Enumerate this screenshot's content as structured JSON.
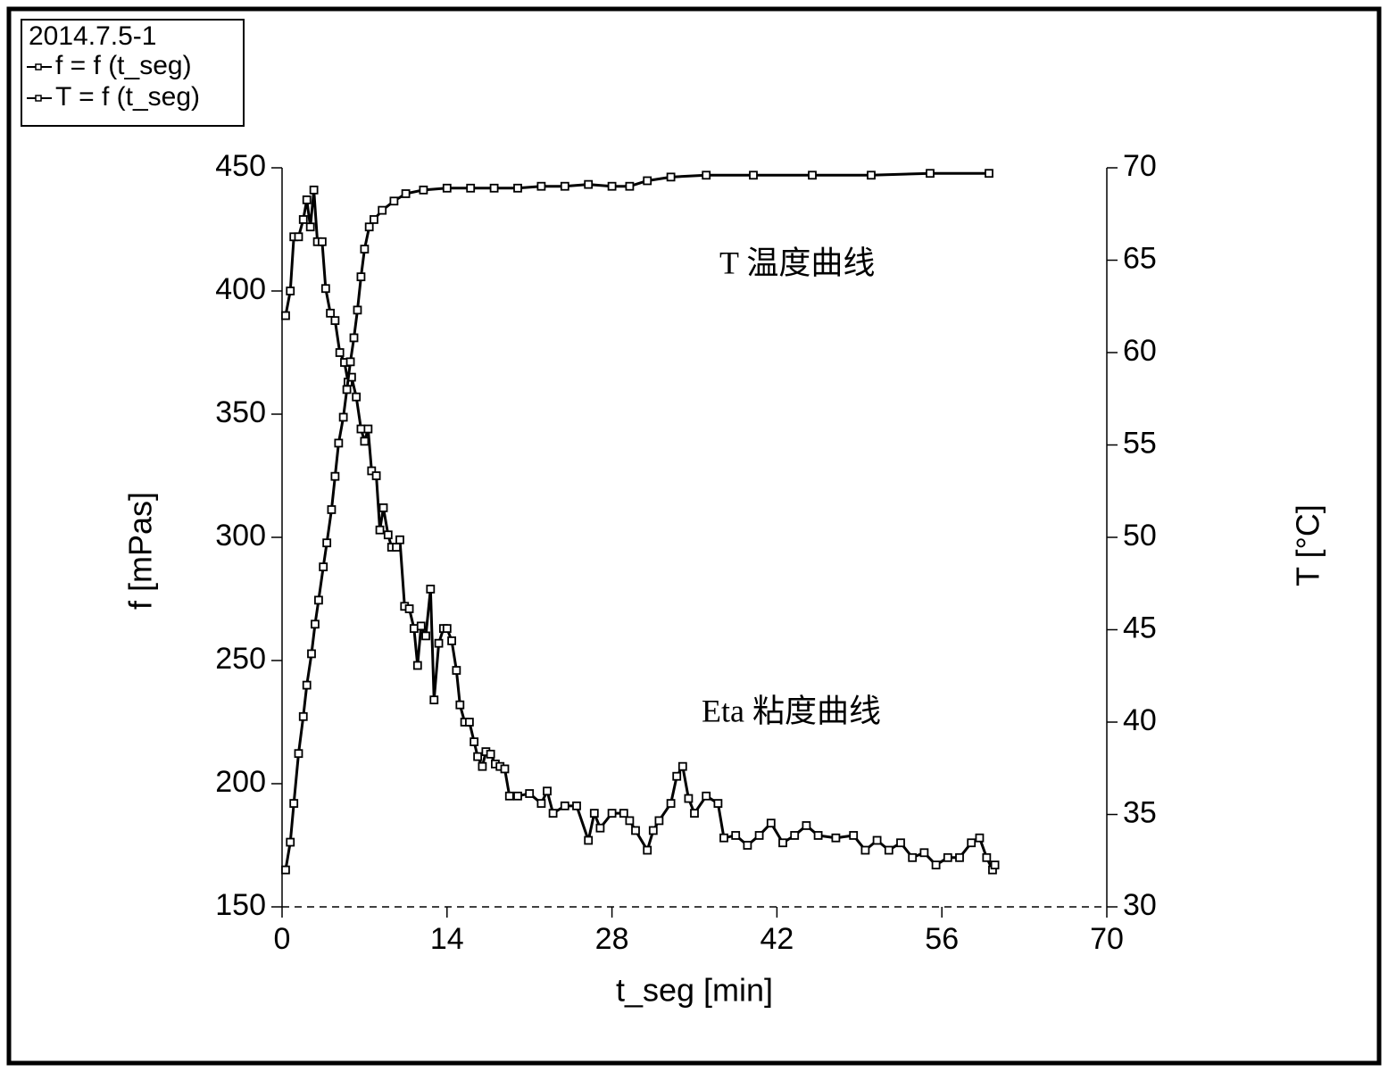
{
  "chart_data": {
    "type": "line",
    "legend_title": "2014.7.5-1",
    "legend": "upper left",
    "xlabel": "t_seg [min]",
    "ylabel": "f [mPas]",
    "y2label": "T [°C]",
    "annotations": [
      "T  温度曲线",
      "Eta  粘度曲线"
    ],
    "xlim": [
      0,
      70
    ],
    "xticks": [
      0,
      14,
      28,
      42,
      56,
      70
    ],
    "ylim": [
      150,
      450
    ],
    "yticks": [
      150,
      200,
      250,
      300,
      350,
      400,
      450
    ],
    "y2lim": [
      30,
      70
    ],
    "y2ticks": [
      30,
      35,
      40,
      45,
      50,
      55,
      60,
      65,
      70
    ],
    "series": [
      {
        "name": "f = f (t_seg)",
        "color": "#000000",
        "x": [
          0.3,
          0.7,
          1.0,
          1.4,
          1.8,
          2.1,
          2.4,
          2.7,
          3.0,
          3.4,
          3.7,
          4.1,
          4.5,
          4.9,
          5.3,
          5.6,
          5.9,
          6.3,
          6.7,
          7.0,
          7.3,
          7.6,
          8.0,
          8.3,
          8.6,
          9.0,
          9.3,
          9.7,
          10.0,
          10.4,
          10.8,
          11.2,
          11.5,
          11.8,
          12.2,
          12.6,
          12.9,
          13.3,
          13.7,
          14.0,
          14.4,
          14.8,
          15.1,
          15.5,
          15.9,
          16.3,
          16.6,
          17.0,
          17.3,
          17.7,
          18.1,
          18.5,
          18.9,
          19.3,
          20,
          21,
          22,
          22.5,
          23,
          24,
          25,
          26,
          26.5,
          27,
          28,
          29,
          29.5,
          30,
          31,
          31.5,
          32,
          33,
          33.5,
          34,
          34.5,
          35,
          36,
          37,
          37.5,
          38.5,
          39.5,
          40.5,
          41.5,
          42.5,
          43.5,
          44.5,
          45.5,
          47,
          48.5,
          49.5,
          50.5,
          51.5,
          52.5,
          53.5,
          54.5,
          55.5,
          56.5,
          57.5,
          58.5,
          59.2,
          59.8,
          60.3,
          60.5
        ],
        "values": [
          390,
          400,
          422,
          422,
          429,
          437,
          426,
          441,
          420,
          420,
          401,
          391,
          388,
          375,
          371,
          363,
          365,
          357,
          344,
          339,
          344,
          327,
          325,
          303,
          312,
          301,
          296,
          296,
          299,
          272,
          271,
          263,
          248,
          264,
          260,
          279,
          234,
          257,
          263,
          263,
          258,
          246,
          232,
          225,
          225,
          217,
          211,
          207,
          213,
          212,
          208,
          207,
          206,
          195,
          195,
          196,
          192,
          197,
          188,
          191,
          191,
          177,
          188,
          182,
          188,
          188,
          185,
          181,
          173,
          181,
          185,
          192,
          203,
          207,
          194,
          188,
          195,
          192,
          178,
          179,
          175,
          179,
          184,
          176,
          179,
          183,
          179,
          178,
          179,
          173,
          177,
          173,
          176,
          170,
          172,
          167,
          170,
          170,
          176,
          178,
          170,
          165,
          167
        ]
      },
      {
        "name": "T = f (t_seg)",
        "color": "#000000",
        "axis": "y2",
        "x": [
          0.3,
          0.7,
          1.0,
          1.4,
          1.8,
          2.1,
          2.5,
          2.8,
          3.1,
          3.5,
          3.8,
          4.2,
          4.5,
          4.8,
          5.2,
          5.5,
          5.8,
          6.1,
          6.4,
          6.7,
          7.0,
          7.4,
          7.8,
          8.5,
          9.5,
          10.5,
          12,
          14,
          16,
          18,
          20,
          22,
          24,
          26,
          28,
          29.5,
          31,
          33,
          36,
          40,
          45,
          50,
          55,
          60
        ],
        "values": [
          32.0,
          33.5,
          35.6,
          38.3,
          40.3,
          42.0,
          43.7,
          45.3,
          46.6,
          48.4,
          49.7,
          51.5,
          53.3,
          55.1,
          56.5,
          58.0,
          59.5,
          60.8,
          62.3,
          64.1,
          65.6,
          66.8,
          67.2,
          67.7,
          68.2,
          68.6,
          68.8,
          68.9,
          68.9,
          68.9,
          68.9,
          69.0,
          69.0,
          69.1,
          69.0,
          69.0,
          69.3,
          69.5,
          69.6,
          69.6,
          69.6,
          69.6,
          69.7,
          69.7
        ]
      }
    ]
  }
}
